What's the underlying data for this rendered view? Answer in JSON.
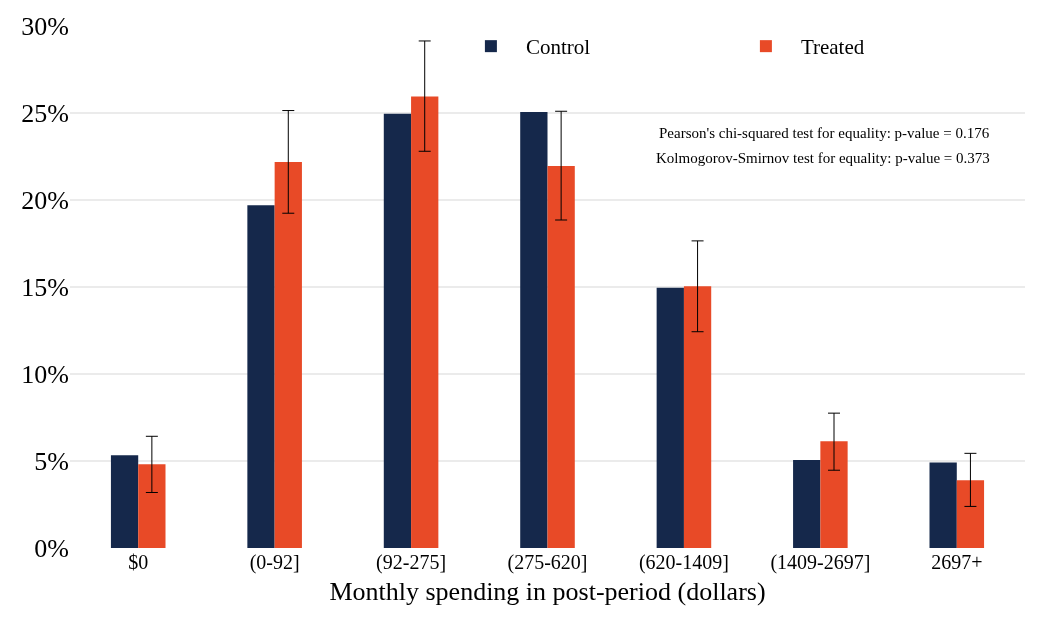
{
  "chart_data": {
    "type": "bar",
    "xlabel": "Monthly spending in post-period (dollars)",
    "categories": [
      "$0",
      "(0-92]",
      "(92-275]",
      "(275-620]",
      "(620-1409]",
      "(1409-2697]",
      "2697+"
    ],
    "series": [
      {
        "name": "Control",
        "color": "#15284b",
        "values": [
          5.33,
          19.7,
          24.96,
          25.06,
          14.96,
          5.06,
          4.92
        ]
      },
      {
        "name": "Treated",
        "color": "#e84a27",
        "values": [
          4.81,
          22.18,
          25.95,
          21.95,
          15.04,
          6.13,
          3.89
        ],
        "errors": [
          [
            3.19,
            6.42
          ],
          [
            19.24,
            25.14
          ],
          [
            22.8,
            29.14
          ],
          [
            18.85,
            25.1
          ],
          [
            12.43,
            17.65
          ],
          [
            4.47,
            7.75
          ],
          [
            2.39,
            5.44
          ]
        ]
      }
    ],
    "ylim": [
      0,
      30
    ],
    "yticks": [
      {
        "value": 0,
        "label": "0%"
      },
      {
        "value": 5,
        "label": "5%"
      },
      {
        "value": 10,
        "label": "10%"
      },
      {
        "value": 15,
        "label": "15%"
      },
      {
        "value": 20,
        "label": "20%"
      },
      {
        "value": 25,
        "label": "25%"
      },
      {
        "value": 30,
        "label": "30%"
      }
    ],
    "grid": "y",
    "legend": "top right",
    "annotations": [
      "Pearson's chi-squared test for equality: p-value = 0.176",
      "Kolmogorov-Smirnov test for equality: p-value = 0.373"
    ]
  }
}
